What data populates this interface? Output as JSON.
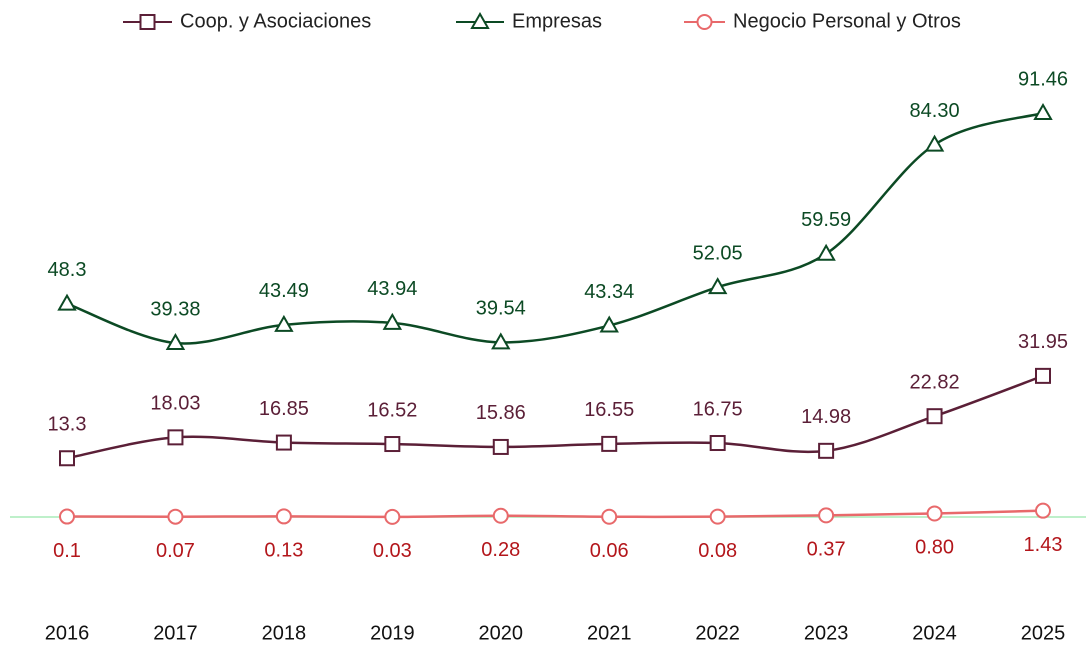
{
  "chart_data": {
    "type": "line",
    "categories": [
      "2016",
      "2017",
      "2018",
      "2019",
      "2020",
      "2021",
      "2022",
      "2023",
      "2024",
      "2025"
    ],
    "series": [
      {
        "name": "Coop. y Asociaciones",
        "color": "#5b1f37",
        "marker": "square",
        "values": [
          13.3,
          18.03,
          16.85,
          16.52,
          15.86,
          16.55,
          16.75,
          14.98,
          22.82,
          31.95
        ]
      },
      {
        "name": "Empresas",
        "color": "#0c4a24",
        "marker": "triangle",
        "values": [
          48.3,
          39.38,
          43.49,
          43.94,
          39.54,
          43.34,
          52.05,
          59.59,
          84.3,
          91.46
        ],
        "value_labels": [
          "48.3",
          "39.38",
          "43.49",
          "43.94",
          "39.54",
          "43.34",
          "52.05",
          "59.59",
          "84.30",
          "91.46"
        ]
      },
      {
        "name": "Negocio Personal y Otros",
        "color": "#e8696b",
        "label_color": "#b3161b",
        "marker": "circle",
        "values": [
          0.1,
          0.07,
          0.13,
          0.03,
          0.28,
          0.06,
          0.08,
          0.37,
          0.8,
          1.43
        ],
        "value_labels": [
          "0.1",
          "0.07",
          "0.13",
          "0.03",
          "0.28",
          "0.06",
          "0.08",
          "0.37",
          "0.80",
          "1.43"
        ]
      }
    ],
    "legend": "top"
  }
}
